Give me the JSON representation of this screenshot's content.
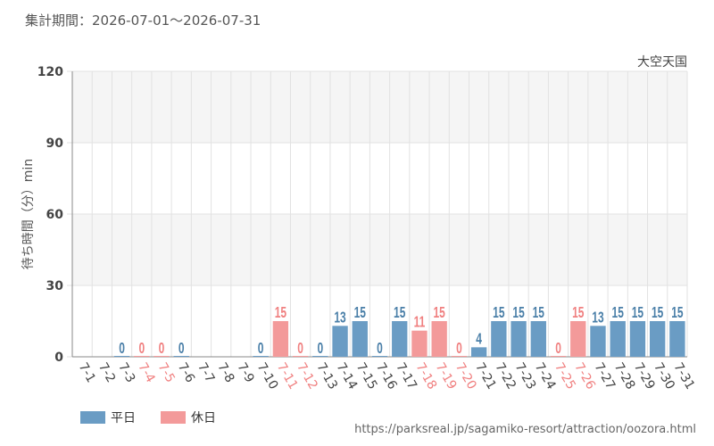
{
  "header": {
    "period_label": "集計期間：2026-07-01～2026-07-31"
  },
  "footer": {
    "url": "https://parksreal.jp/sagamiko-resort/attraction/oozora.html"
  },
  "legend": {
    "weekday": "平日",
    "holiday": "休日"
  },
  "colors": {
    "weekday": "#6a9cc4",
    "holiday": "#f39a9a",
    "weekday_label": "#4a7fa8",
    "holiday_label": "#f08080",
    "band": "#f5f5f5",
    "grid": "#e2e2e2"
  },
  "chart_data": {
    "type": "bar",
    "title": "大空天国",
    "ylabel": "待ち時間（分）min",
    "ylim": [
      0,
      120
    ],
    "yticks": [
      0,
      30,
      60,
      90,
      120
    ],
    "categories": [
      "7-1",
      "7-2",
      "7-3",
      "7-4",
      "7-5",
      "7-6",
      "7-7",
      "7-8",
      "7-9",
      "7-10",
      "7-11",
      "7-12",
      "7-13",
      "7-14",
      "7-15",
      "7-16",
      "7-17",
      "7-18",
      "7-19",
      "7-20",
      "7-21",
      "7-22",
      "7-23",
      "7-24",
      "7-25",
      "7-26",
      "7-27",
      "7-28",
      "7-29",
      "7-30",
      "7-31"
    ],
    "holiday": [
      false,
      false,
      false,
      true,
      true,
      false,
      false,
      false,
      false,
      false,
      true,
      true,
      false,
      false,
      false,
      false,
      false,
      true,
      true,
      true,
      false,
      false,
      false,
      false,
      true,
      true,
      false,
      false,
      false,
      false,
      false
    ],
    "values": [
      null,
      null,
      0,
      0,
      0,
      0,
      null,
      null,
      null,
      0,
      15,
      0,
      0,
      13,
      15,
      0,
      15,
      11,
      15,
      0,
      4,
      15,
      15,
      15,
      0,
      15,
      13,
      15,
      15,
      15,
      15
    ]
  }
}
